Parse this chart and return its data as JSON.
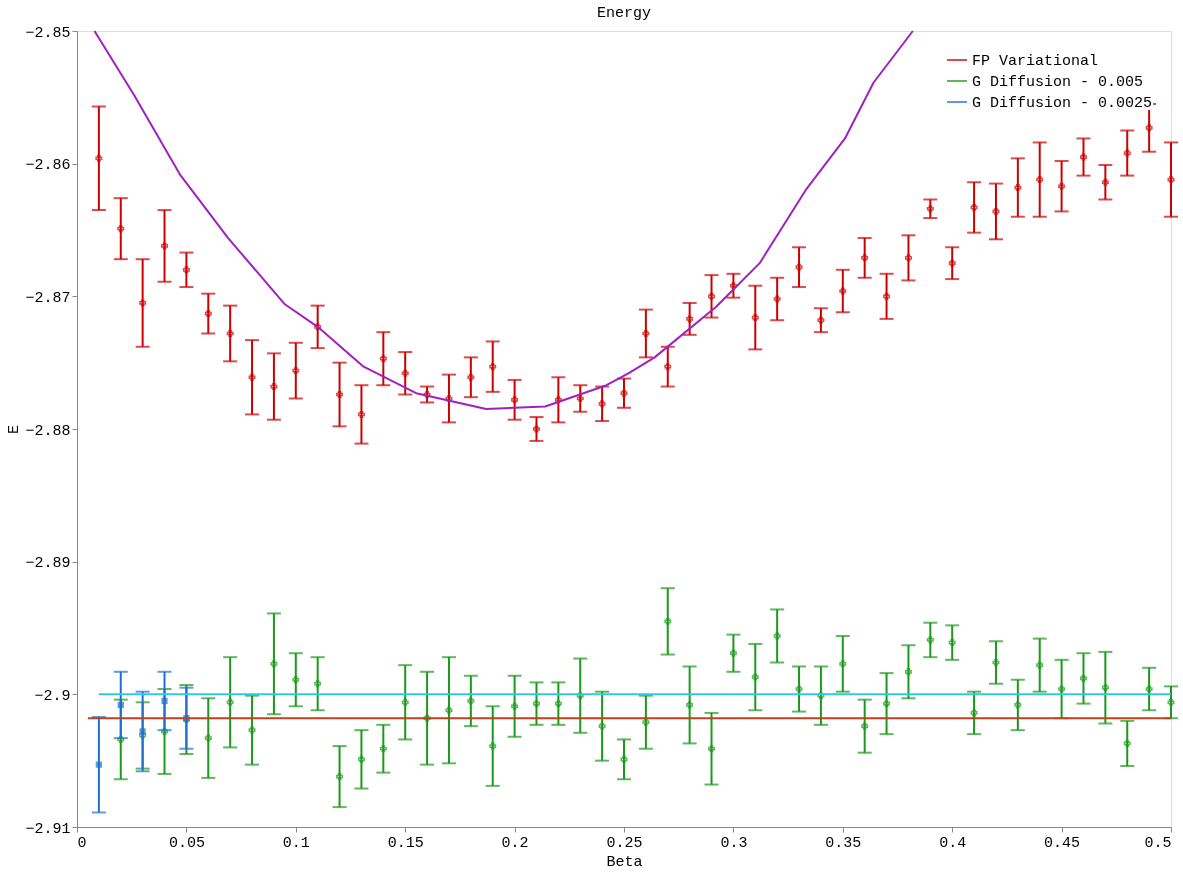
{
  "chart_data": {
    "type": "scatter",
    "title": "Energy",
    "xlabel": "Beta",
    "ylabel": "E",
    "xlim": [
      0,
      0.5
    ],
    "ylim": [
      -2.91,
      -2.85
    ],
    "xticks": [
      0,
      0.05,
      0.1,
      0.15,
      0.2,
      0.25,
      0.3,
      0.35,
      0.4,
      0.45,
      0.5
    ],
    "yticks": [
      -2.91,
      -2.9,
      -2.89,
      -2.88,
      -2.87,
      -2.86,
      -2.85
    ],
    "grid": false,
    "legend": "top right",
    "series": [
      {
        "name": "FP Variational",
        "color": "#cc0000",
        "marker": "cross",
        "x": [
          0.01,
          0.02,
          0.03,
          0.04,
          0.05,
          0.06,
          0.07,
          0.08,
          0.09,
          0.1,
          0.11,
          0.12,
          0.13,
          0.14,
          0.15,
          0.16,
          0.17,
          0.18,
          0.19,
          0.2,
          0.21,
          0.22,
          0.23,
          0.24,
          0.25,
          0.26,
          0.27,
          0.28,
          0.29,
          0.3,
          0.31,
          0.32,
          0.33,
          0.34,
          0.35,
          0.36,
          0.37,
          0.38,
          0.39,
          0.4,
          0.41,
          0.42,
          0.43,
          0.44,
          0.45,
          0.46,
          0.47,
          0.48,
          0.49,
          0.5
        ],
        "values": [
          -2.8596,
          -2.8649,
          -2.8705,
          -2.8662,
          -2.868,
          -2.8713,
          -2.8728,
          -2.8761,
          -2.8768,
          -2.8756,
          -2.8723,
          -2.8774,
          -2.8789,
          -2.8747,
          -2.8758,
          -2.8774,
          -2.8777,
          -2.8761,
          -2.8753,
          -2.8778,
          -2.88,
          -2.8778,
          -2.8777,
          -2.8781,
          -2.8773,
          -2.8728,
          -2.8753,
          -2.8717,
          -2.87,
          -2.8692,
          -2.8716,
          -2.8702,
          -2.8678,
          -2.8718,
          -2.8696,
          -2.8671,
          -2.87,
          -2.8671,
          -2.8634,
          -2.8675,
          -2.8633,
          -2.8636,
          -2.8618,
          -2.8612,
          -2.8617,
          -2.8595,
          -2.8614,
          -2.8592,
          -2.8573,
          -2.8612
        ],
        "errors": [
          0.0039,
          0.0023,
          0.0033,
          0.0027,
          0.0013,
          0.0015,
          0.0021,
          0.0028,
          0.0025,
          0.0021,
          0.0016,
          0.0024,
          0.0022,
          0.002,
          0.0016,
          0.0006,
          0.0018,
          0.0015,
          0.0019,
          0.0015,
          0.0009,
          0.0017,
          0.001,
          0.0013,
          0.0011,
          0.0018,
          0.0015,
          0.0012,
          0.0016,
          0.0009,
          0.0024,
          0.0016,
          0.0015,
          0.0009,
          0.0016,
          0.0015,
          0.0017,
          0.0017,
          0.0007,
          0.0012,
          0.0019,
          0.0021,
          0.0022,
          0.0028,
          0.0019,
          0.0014,
          0.0013,
          0.0017,
          0.0018,
          0.0028
        ]
      },
      {
        "name": "G Diffusion - 0.005",
        "color": "#1a9a1a",
        "marker": "cross",
        "x": [
          0.02,
          0.03,
          0.04,
          0.05,
          0.06,
          0.07,
          0.08,
          0.09,
          0.1,
          0.11,
          0.12,
          0.13,
          0.14,
          0.15,
          0.16,
          0.17,
          0.18,
          0.19,
          0.2,
          0.21,
          0.22,
          0.23,
          0.24,
          0.25,
          0.26,
          0.27,
          0.28,
          0.29,
          0.3,
          0.31,
          0.32,
          0.33,
          0.34,
          0.35,
          0.36,
          0.37,
          0.38,
          0.39,
          0.4,
          0.41,
          0.42,
          0.43,
          0.44,
          0.45,
          0.46,
          0.47,
          0.48,
          0.49,
          0.5
        ],
        "values": [
          -2.9034,
          -2.9031,
          -2.9028,
          -2.9019,
          -2.9033,
          -2.9006,
          -2.9027,
          -2.8977,
          -2.8989,
          -2.8992,
          -2.9062,
          -2.9049,
          -2.9041,
          -2.9006,
          -2.9018,
          -2.9012,
          -2.9005,
          -2.9039,
          -2.9009,
          -2.9007,
          -2.9007,
          -2.9001,
          -2.9024,
          -2.9049,
          -2.9021,
          -2.8945,
          -2.9008,
          -2.9041,
          -2.8969,
          -2.8987,
          -2.8956,
          -2.8996,
          -2.9001,
          -2.8977,
          -2.9024,
          -2.9007,
          -2.8983,
          -2.8959,
          -2.8961,
          -2.9014,
          -2.8976,
          -2.9008,
          -2.8978,
          -2.8996,
          -2.8988,
          -2.8995,
          -2.9037,
          -2.8996,
          -2.9006
        ],
        "errors": [
          0.003,
          0.0025,
          0.0032,
          0.0026,
          0.003,
          0.0034,
          0.0026,
          0.0038,
          0.002,
          0.002,
          0.0023,
          0.0022,
          0.0018,
          0.0028,
          0.0035,
          0.004,
          0.0019,
          0.003,
          0.0023,
          0.0016,
          0.0016,
          0.0028,
          0.0026,
          0.0015,
          0.002,
          0.0025,
          0.0029,
          0.0027,
          0.0014,
          0.0025,
          0.002,
          0.0017,
          0.0022,
          0.0021,
          0.002,
          0.0023,
          0.002,
          0.0013,
          0.0013,
          0.0016,
          0.0016,
          0.0019,
          0.002,
          0.0022,
          0.0019,
          0.0027,
          0.0017,
          0.0016,
          0.0012
        ]
      },
      {
        "name": "G Diffusion - 0.0025",
        "color": "#1f6fd0",
        "marker": "square",
        "x": [
          0.01,
          0.02,
          0.03,
          0.04,
          0.05
        ],
        "values": [
          -2.9053,
          -2.9008,
          -2.9028,
          -2.9005,
          -2.9018
        ],
        "errors": [
          0.0036,
          0.0025,
          0.003,
          0.0022,
          0.0023
        ]
      },
      {
        "type": "line",
        "color": "#a020c0",
        "x": [
          0.008,
          0.026,
          0.047,
          0.069,
          0.095,
          0.11,
          0.131,
          0.155,
          0.187,
          0.214,
          0.242,
          0.252,
          0.264,
          0.292,
          0.312,
          0.333,
          0.351,
          0.364,
          0.382
        ],
        "values": [
          -2.85,
          -2.8548,
          -2.8608,
          -2.8656,
          -2.8706,
          -2.8723,
          -2.8753,
          -2.8773,
          -2.8785,
          -2.8783,
          -2.8767,
          -2.8758,
          -2.8746,
          -2.8708,
          -2.8675,
          -2.862,
          -2.8581,
          -2.8539,
          -2.85
        ]
      },
      {
        "type": "line",
        "color": "#30c8e8",
        "x": [
          0.01,
          0.5
        ],
        "values": [
          -2.9,
          -2.9
        ]
      },
      {
        "type": "line",
        "color": "#c04020",
        "x": [
          0.005,
          0.5
        ],
        "values": [
          -2.9018,
          -2.9018
        ]
      }
    ]
  }
}
